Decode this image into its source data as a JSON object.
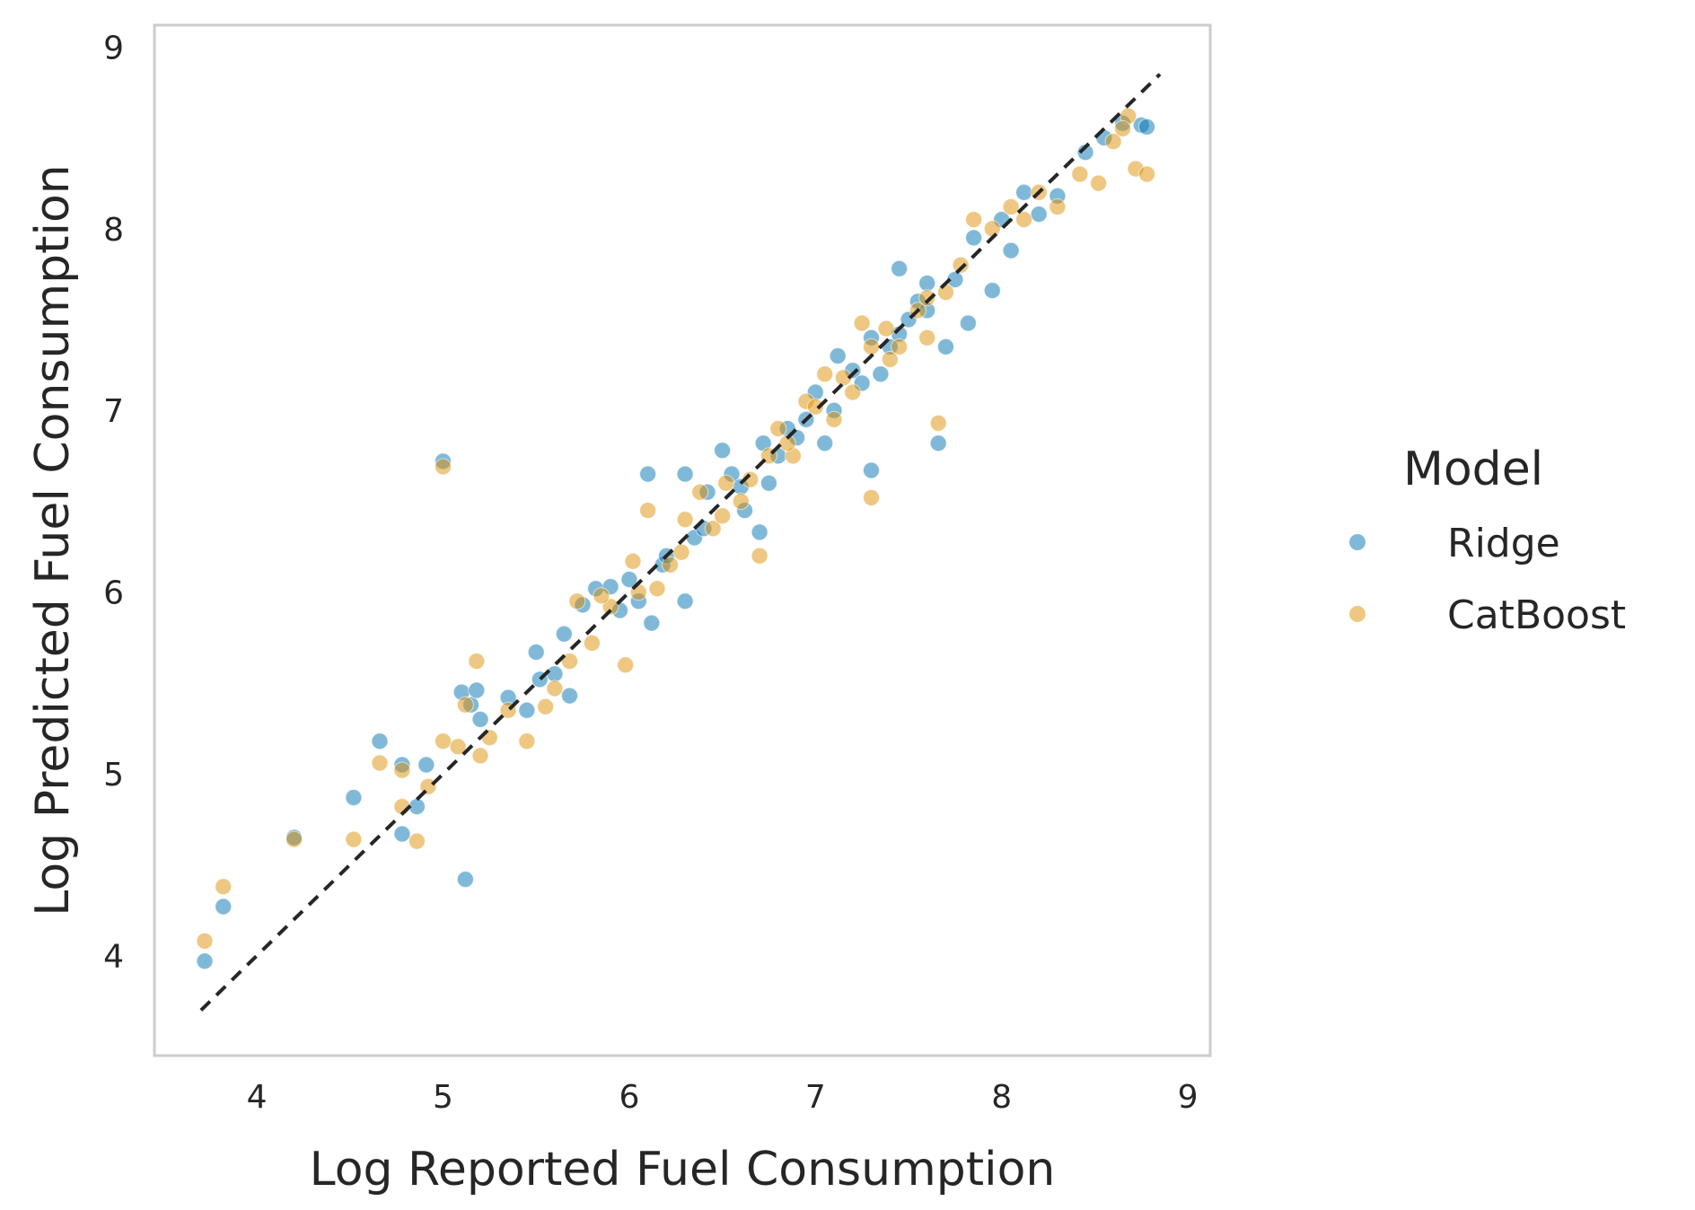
{
  "chart_data": {
    "type": "scatter",
    "xlabel": "Log Reported Fuel Consumption",
    "ylabel": "Log Predicted Fuel Consumption",
    "xlim": [
      3.45,
      9.12
    ],
    "ylim": [
      3.45,
      9.12
    ],
    "xticks": [
      "4",
      "5",
      "6",
      "7",
      "8",
      "9"
    ],
    "yticks": [
      "4",
      "5",
      "6",
      "7",
      "8",
      "9"
    ],
    "grid": false,
    "identity_line": {
      "from": [
        3.7,
        3.7
      ],
      "to": [
        8.85,
        8.85
      ],
      "style": "dashed",
      "color": "#262626"
    },
    "legend": {
      "title": "Model",
      "placement": "right",
      "entries": [
        {
          "label": "Ridge",
          "color": "#0173b2"
        },
        {
          "label": "CatBoost",
          "color": "#de8f05"
        }
      ]
    },
    "series": [
      {
        "name": "Ridge",
        "color": "#0173b2",
        "opacity": 0.5,
        "points": [
          [
            3.72,
            3.97
          ],
          [
            3.82,
            4.27
          ],
          [
            4.2,
            4.65
          ],
          [
            4.52,
            4.87
          ],
          [
            4.66,
            5.18
          ],
          [
            4.78,
            5.05
          ],
          [
            4.78,
            4.67
          ],
          [
            4.86,
            4.82
          ],
          [
            4.91,
            5.05
          ],
          [
            5.0,
            6.72
          ],
          [
            5.12,
            4.42
          ],
          [
            5.1,
            5.45
          ],
          [
            5.15,
            5.38
          ],
          [
            5.18,
            5.46
          ],
          [
            5.2,
            5.3
          ],
          [
            5.35,
            5.42
          ],
          [
            5.45,
            5.35
          ],
          [
            5.5,
            5.67
          ],
          [
            5.52,
            5.52
          ],
          [
            5.6,
            5.55
          ],
          [
            5.65,
            5.77
          ],
          [
            5.68,
            5.43
          ],
          [
            5.75,
            5.93
          ],
          [
            5.82,
            6.02
          ],
          [
            5.9,
            6.03
          ],
          [
            6.0,
            6.07
          ],
          [
            6.05,
            5.95
          ],
          [
            6.1,
            6.65
          ],
          [
            6.12,
            5.83
          ],
          [
            6.18,
            6.15
          ],
          [
            6.3,
            6.65
          ],
          [
            6.3,
            5.95
          ],
          [
            6.35,
            6.3
          ],
          [
            6.42,
            6.55
          ],
          [
            6.5,
            6.78
          ],
          [
            6.55,
            6.65
          ],
          [
            6.62,
            6.45
          ],
          [
            6.7,
            6.33
          ],
          [
            6.72,
            6.82
          ],
          [
            6.8,
            6.75
          ],
          [
            6.85,
            6.9
          ],
          [
            6.95,
            6.95
          ],
          [
            7.0,
            7.1
          ],
          [
            7.05,
            6.82
          ],
          [
            7.12,
            7.3
          ],
          [
            7.2,
            7.22
          ],
          [
            7.3,
            6.67
          ],
          [
            7.3,
            7.4
          ],
          [
            7.35,
            7.2
          ],
          [
            7.4,
            7.35
          ],
          [
            7.45,
            7.78
          ],
          [
            7.5,
            7.5
          ],
          [
            7.55,
            7.6
          ],
          [
            7.6,
            7.55
          ],
          [
            7.66,
            6.82
          ],
          [
            7.7,
            7.35
          ],
          [
            7.75,
            7.72
          ],
          [
            7.82,
            7.48
          ],
          [
            7.85,
            7.95
          ],
          [
            7.95,
            7.66
          ],
          [
            8.0,
            8.05
          ],
          [
            8.05,
            7.88
          ],
          [
            8.12,
            8.2
          ],
          [
            8.2,
            8.08
          ],
          [
            8.3,
            8.18
          ],
          [
            8.45,
            8.42
          ],
          [
            8.55,
            8.5
          ],
          [
            8.65,
            8.58
          ],
          [
            8.75,
            8.57
          ],
          [
            8.78,
            8.56
          ],
          [
            6.6,
            6.58
          ],
          [
            6.75,
            6.6
          ],
          [
            6.9,
            6.85
          ],
          [
            7.1,
            7.0
          ],
          [
            7.25,
            7.15
          ],
          [
            7.45,
            7.42
          ],
          [
            7.6,
            7.7
          ],
          [
            6.4,
            6.35
          ],
          [
            6.2,
            6.2
          ],
          [
            5.95,
            5.9
          ]
        ]
      },
      {
        "name": "CatBoost",
        "color": "#de8f05",
        "opacity": 0.5,
        "points": [
          [
            3.72,
            4.08
          ],
          [
            3.82,
            4.38
          ],
          [
            4.2,
            4.64
          ],
          [
            4.52,
            4.64
          ],
          [
            4.66,
            5.06
          ],
          [
            4.78,
            5.02
          ],
          [
            4.78,
            4.82
          ],
          [
            4.86,
            4.63
          ],
          [
            4.92,
            4.93
          ],
          [
            5.0,
            6.69
          ],
          [
            5.0,
            5.18
          ],
          [
            5.08,
            5.15
          ],
          [
            5.12,
            5.38
          ],
          [
            5.18,
            5.62
          ],
          [
            5.2,
            5.1
          ],
          [
            5.25,
            5.2
          ],
          [
            5.35,
            5.35
          ],
          [
            5.45,
            5.18
          ],
          [
            5.55,
            5.37
          ],
          [
            5.6,
            5.47
          ],
          [
            5.68,
            5.62
          ],
          [
            5.72,
            5.95
          ],
          [
            5.8,
            5.72
          ],
          [
            5.9,
            5.92
          ],
          [
            5.98,
            5.6
          ],
          [
            6.02,
            6.17
          ],
          [
            6.1,
            6.45
          ],
          [
            6.15,
            6.02
          ],
          [
            6.22,
            6.15
          ],
          [
            6.3,
            6.4
          ],
          [
            6.38,
            6.55
          ],
          [
            6.45,
            6.35
          ],
          [
            6.52,
            6.6
          ],
          [
            6.6,
            6.5
          ],
          [
            6.7,
            6.2
          ],
          [
            6.75,
            6.75
          ],
          [
            6.8,
            6.9
          ],
          [
            6.88,
            6.75
          ],
          [
            6.95,
            7.05
          ],
          [
            7.05,
            7.2
          ],
          [
            7.1,
            6.95
          ],
          [
            7.2,
            7.1
          ],
          [
            7.3,
            6.52
          ],
          [
            7.3,
            7.35
          ],
          [
            7.38,
            7.45
          ],
          [
            7.45,
            7.35
          ],
          [
            7.55,
            7.55
          ],
          [
            7.6,
            7.4
          ],
          [
            7.66,
            6.93
          ],
          [
            7.7,
            7.65
          ],
          [
            7.78,
            7.8
          ],
          [
            7.85,
            8.05
          ],
          [
            7.95,
            8.0
          ],
          [
            8.05,
            8.12
          ],
          [
            8.12,
            8.05
          ],
          [
            8.2,
            8.2
          ],
          [
            8.3,
            8.12
          ],
          [
            8.42,
            8.3
          ],
          [
            8.52,
            8.25
          ],
          [
            8.6,
            8.48
          ],
          [
            8.68,
            8.62
          ],
          [
            8.72,
            8.33
          ],
          [
            8.78,
            8.3
          ],
          [
            8.65,
            8.55
          ],
          [
            6.5,
            6.42
          ],
          [
            6.65,
            6.62
          ],
          [
            6.85,
            6.82
          ],
          [
            7.0,
            7.02
          ],
          [
            7.15,
            7.18
          ],
          [
            7.4,
            7.28
          ],
          [
            7.6,
            7.62
          ],
          [
            5.85,
            5.98
          ],
          [
            6.05,
            6.0
          ],
          [
            6.28,
            6.22
          ],
          [
            7.25,
            7.48
          ]
        ]
      }
    ]
  }
}
